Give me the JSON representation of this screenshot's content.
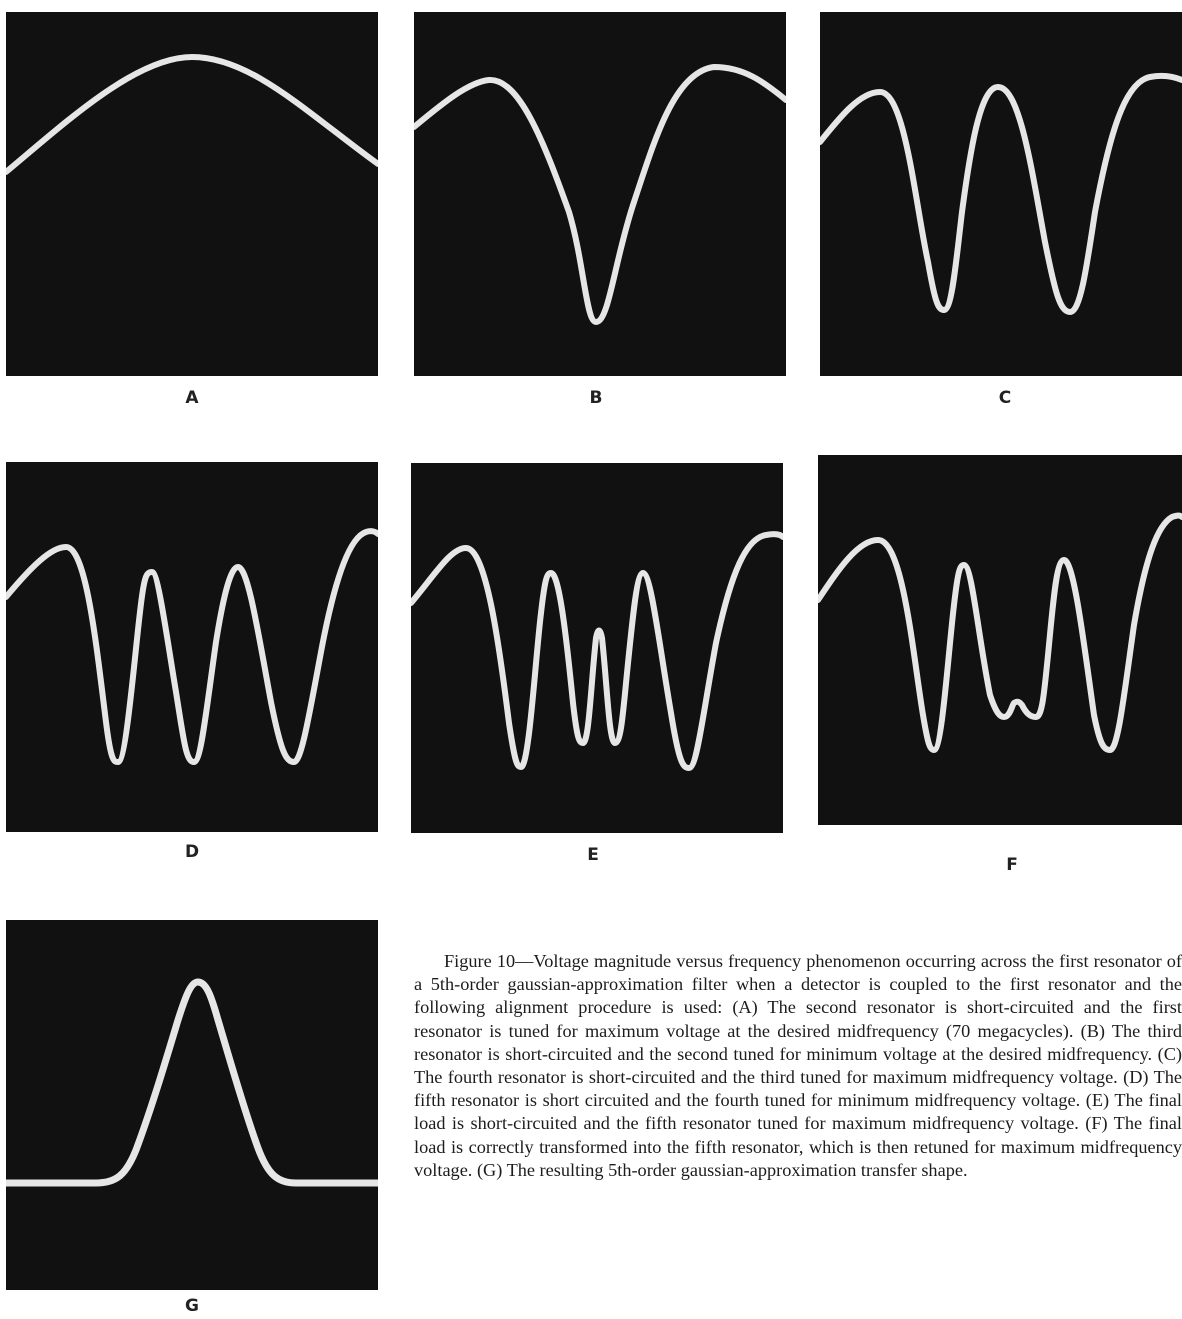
{
  "panels": [
    {
      "id": "A",
      "label": "A",
      "curve": "single-peak"
    },
    {
      "id": "B",
      "label": "B",
      "curve": "single-dip"
    },
    {
      "id": "C",
      "label": "C",
      "curve": "two-dips"
    },
    {
      "id": "D",
      "label": "D",
      "curve": "three-dips"
    },
    {
      "id": "E",
      "label": "E",
      "curve": "four-dips"
    },
    {
      "id": "F",
      "label": "F",
      "curve": "two-dips-center-bump"
    },
    {
      "id": "G",
      "label": "G",
      "curve": "gaussian-peak"
    }
  ],
  "caption": "Figure 10—Voltage magnitude versus frequency phenomenon occurring across the first resonator of a 5th-order gaussian-approximation filter when a detector is coupled to the first resonator and the following alignment procedure is used: (A) The second resonator is short-circuited and the first resonator is tuned for maximum voltage at the desired midfrequency (70 megacycles). (B) The third resonator is short-circuited and the second tuned for minimum voltage at the desired midfrequency. (C) The fourth resonator is short-circuited and the third tuned for maximum midfrequency voltage. (D) The fifth resonator is short circuited and the fourth tuned for minimum midfrequency voltage. (E) The final load is short-circuited and the fifth resonator tuned for maximum midfrequency voltage. (F) The final load is correctly transformed into the fifth resonator, which is then retuned for maximum midfrequency voltage. (G) The resulting 5th-order gaussian-approximation transfer shape.",
  "colors": {
    "screen": "#111111",
    "trace": "#e6e6e6"
  }
}
